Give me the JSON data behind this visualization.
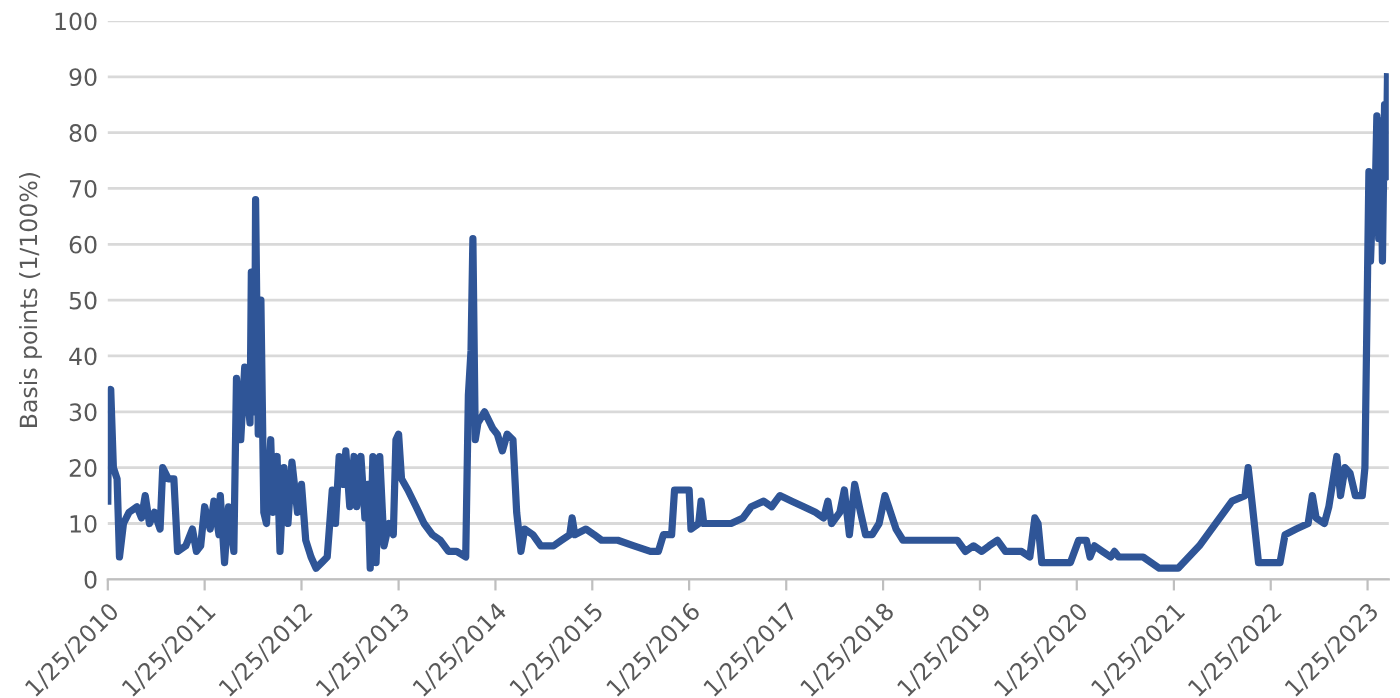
{
  "chart_data": {
    "type": "line",
    "ylabel": "Basis points (1/100%)",
    "xlim": [
      "2010-01-25",
      "2023-04-15"
    ],
    "ylim": [
      0,
      100
    ],
    "yticks": [
      0,
      10,
      20,
      30,
      40,
      50,
      60,
      70,
      80,
      90,
      100
    ],
    "xticks": [
      {
        "value": "2010-01-25",
        "label": "1/25/2010"
      },
      {
        "value": "2011-01-25",
        "label": "1/25/2011"
      },
      {
        "value": "2012-01-25",
        "label": "1/25/2012"
      },
      {
        "value": "2013-01-25",
        "label": "1/25/2013"
      },
      {
        "value": "2014-01-25",
        "label": "1/25/2014"
      },
      {
        "value": "2015-01-25",
        "label": "1/25/2015"
      },
      {
        "value": "2016-01-25",
        "label": "1/25/2016"
      },
      {
        "value": "2017-01-25",
        "label": "1/25/2017"
      },
      {
        "value": "2018-01-25",
        "label": "1/25/2018"
      },
      {
        "value": "2019-01-25",
        "label": "1/25/2019"
      },
      {
        "value": "2020-01-25",
        "label": "1/25/2020"
      },
      {
        "value": "2021-01-25",
        "label": "1/25/2021"
      },
      {
        "value": "2022-01-25",
        "label": "1/25/2022"
      },
      {
        "value": "2023-01-25",
        "label": "1/25/2023"
      }
    ],
    "grid": "y",
    "legend": false,
    "marker": "none",
    "line_style": "solid",
    "series": [
      {
        "color": "#2f5597",
        "x": [
          "2010-01-25",
          "2010-01-28",
          "2010-02-05",
          "2010-02-15",
          "2010-03-01",
          "2010-03-10",
          "2010-03-25",
          "2010-04-15",
          "2010-05-15",
          "2010-06-01",
          "2010-06-15",
          "2010-07-01",
          "2010-07-20",
          "2010-08-10",
          "2010-08-20",
          "2010-09-10",
          "2010-10-01",
          "2010-10-15",
          "2010-11-15",
          "2010-12-10",
          "2010-12-25",
          "2011-01-10",
          "2011-01-25",
          "2011-02-15",
          "2011-03-01",
          "2011-03-20",
          "2011-03-25",
          "2011-04-10",
          "2011-04-25",
          "2011-05-15",
          "2011-05-25",
          "2011-06-10",
          "2011-06-25",
          "2011-07-15",
          "2011-07-20",
          "2011-08-01",
          "2011-08-05",
          "2011-08-15",
          "2011-08-25",
          "2011-09-05",
          "2011-09-15",
          "2011-10-01",
          "2011-10-10",
          "2011-10-25",
          "2011-11-05",
          "2011-11-20",
          "2011-12-05",
          "2011-12-20",
          "2012-01-10",
          "2012-01-25",
          "2012-02-10",
          "2012-03-01",
          "2012-03-20",
          "2012-04-10",
          "2012-05-01",
          "2012-05-20",
          "2012-06-01",
          "2012-06-15",
          "2012-07-01",
          "2012-07-10",
          "2012-07-25",
          "2012-08-10",
          "2012-08-20",
          "2012-09-05",
          "2012-09-20",
          "2012-10-01",
          "2012-10-10",
          "2012-10-20",
          "2012-11-01",
          "2012-11-15",
          "2012-12-01",
          "2012-12-20",
          "2013-01-05",
          "2013-01-15",
          "2013-01-25",
          "2013-02-05",
          "2013-03-01",
          "2013-04-01",
          "2013-05-01",
          "2013-06-01",
          "2013-07-01",
          "2013-08-01",
          "2013-09-01",
          "2013-10-05",
          "2013-10-15",
          "2013-10-25",
          "2013-11-01",
          "2013-11-10",
          "2013-11-20",
          "2013-12-15",
          "2014-01-15",
          "2014-02-01",
          "2014-02-20",
          "2014-03-10",
          "2014-04-01",
          "2014-04-15",
          "2014-05-01",
          "2014-05-15",
          "2014-06-15",
          "2014-07-15",
          "2014-09-01",
          "2014-10-01",
          "2014-11-01",
          "2014-11-10",
          "2014-11-20",
          "2015-01-01",
          "2015-02-01",
          "2015-03-01",
          "2015-05-01",
          "2015-07-01",
          "2015-09-01",
          "2015-10-01",
          "2015-10-20",
          "2015-11-20",
          "2015-12-01",
          "2016-01-25",
          "2016-02-01",
          "2016-03-01",
          "2016-03-10",
          "2016-03-20",
          "2016-05-01",
          "2016-07-01",
          "2016-08-15",
          "2016-09-15",
          "2016-11-01",
          "2016-12-01",
          "2017-01-01",
          "2017-02-15",
          "2017-04-01",
          "2017-05-15",
          "2017-06-15",
          "2017-07-01",
          "2017-07-15",
          "2017-08-15",
          "2017-09-01",
          "2017-09-20",
          "2017-10-10",
          "2017-11-01",
          "2017-11-20",
          "2017-12-15",
          "2018-01-10",
          "2018-02-01",
          "2018-02-15",
          "2018-03-15",
          "2018-04-10",
          "2018-06-01",
          "2018-09-01",
          "2018-11-01",
          "2018-12-01",
          "2019-01-01",
          "2019-02-01",
          "2019-03-01",
          "2019-04-01",
          "2019-05-01",
          "2019-07-01",
          "2019-08-01",
          "2019-08-20",
          "2019-09-01",
          "2019-09-15",
          "2019-11-01",
          "2020-01-01",
          "2020-02-01",
          "2020-03-01",
          "2020-03-15",
          "2020-04-01",
          "2020-05-01",
          "2020-06-01",
          "2020-06-15",
          "2020-07-01",
          "2020-10-01",
          "2020-12-01",
          "2021-02-10",
          "2021-05-01",
          "2021-09-01",
          "2021-10-20",
          "2021-11-01",
          "2021-11-15",
          "2021-12-10",
          "2022-03-01",
          "2022-03-20",
          "2022-05-01",
          "2022-06-15",
          "2022-07-01",
          "2022-07-15",
          "2022-08-15",
          "2022-09-01",
          "2022-10-01",
          "2022-10-15",
          "2022-11-01",
          "2022-11-20",
          "2022-12-10",
          "2023-01-05",
          "2023-01-15",
          "2023-01-25",
          "2023-01-30",
          "2023-02-05",
          "2023-02-15",
          "2023-02-22",
          "2023-03-01",
          "2023-03-08",
          "2023-03-15",
          "2023-03-22",
          "2023-03-30",
          "2023-04-05",
          "2023-04-10"
        ],
        "values": [
          14,
          32,
          34,
          20,
          18,
          4,
          10,
          12,
          13,
          11,
          15,
          10,
          12,
          9,
          20,
          18,
          18,
          5,
          6,
          9,
          5,
          6,
          13,
          9,
          14,
          8,
          15,
          3,
          13,
          5,
          36,
          25,
          38,
          28,
          55,
          30,
          68,
          26,
          50,
          12,
          10,
          25,
          12,
          22,
          5,
          20,
          10,
          21,
          12,
          17,
          7,
          4,
          2,
          3,
          4,
          16,
          10,
          22,
          17,
          23,
          13,
          22,
          13,
          22,
          11,
          17,
          2,
          22,
          3,
          22,
          6,
          10,
          8,
          25,
          26,
          18,
          16,
          13,
          10,
          8,
          7,
          5,
          5,
          4,
          33,
          41,
          61,
          25,
          28,
          30,
          27,
          26,
          23,
          26,
          25,
          12,
          5,
          9,
          8,
          6,
          6,
          7,
          8,
          11,
          8,
          9,
          8,
          7,
          7,
          6,
          5,
          5,
          8,
          8,
          16,
          16,
          9,
          10,
          14,
          10,
          10,
          10,
          11,
          13,
          14,
          13,
          15,
          14,
          13,
          12,
          11,
          14,
          10,
          12,
          16,
          8,
          17,
          12,
          8,
          8,
          10,
          15,
          13,
          9,
          7,
          7,
          7,
          7,
          5,
          6,
          5,
          6,
          7,
          5,
          5,
          4,
          11,
          10,
          3,
          3,
          3,
          7,
          7,
          4,
          6,
          5,
          4,
          5,
          4,
          4,
          2,
          2,
          6,
          14,
          15,
          20,
          14,
          3,
          3,
          8,
          9,
          10,
          15,
          11,
          10,
          13,
          22,
          15,
          20,
          19,
          15,
          15,
          20,
          55,
          73,
          57,
          70,
          67,
          83,
          61,
          82,
          57,
          85,
          72,
          90
        ]
      }
    ]
  }
}
